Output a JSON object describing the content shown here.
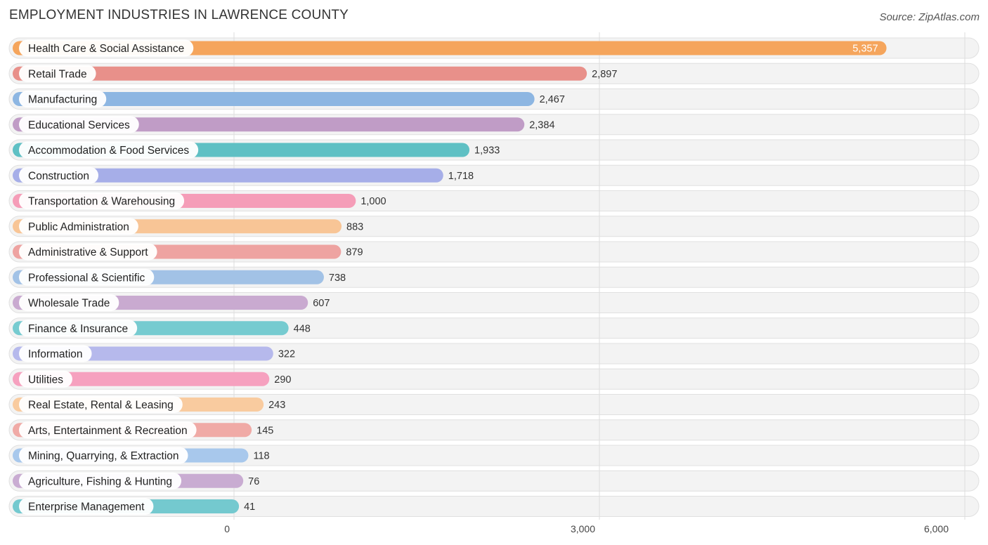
{
  "chart_data": {
    "type": "bar",
    "orientation": "horizontal",
    "title": "EMPLOYMENT INDUSTRIES IN LAWRENCE COUNTY",
    "source": "Source: ZipAtlas.com",
    "categories": [
      "Health Care & Social Assistance",
      "Retail Trade",
      "Manufacturing",
      "Educational Services",
      "Accommodation & Food Services",
      "Construction",
      "Transportation & Warehousing",
      "Public Administration",
      "Administrative & Support",
      "Professional & Scientific",
      "Wholesale Trade",
      "Finance & Insurance",
      "Information",
      "Utilities",
      "Real Estate, Rental & Leasing",
      "Arts, Entertainment & Recreation",
      "Mining, Quarrying, & Extraction",
      "Agriculture, Fishing & Hunting",
      "Enterprise Management"
    ],
    "values": [
      5357,
      2897,
      2467,
      2384,
      1933,
      1718,
      1000,
      883,
      879,
      738,
      607,
      448,
      322,
      290,
      243,
      145,
      118,
      76,
      41
    ],
    "value_labels": [
      "5,357",
      "2,897",
      "2,467",
      "2,384",
      "1,933",
      "1,718",
      "1,000",
      "883",
      "879",
      "738",
      "607",
      "448",
      "322",
      "290",
      "243",
      "145",
      "118",
      "76",
      "41"
    ],
    "colors": [
      "#f5a55c",
      "#e8908a",
      "#8db6e2",
      "#c09cc6",
      "#5fc0c4",
      "#a6aee8",
      "#f59db8",
      "#f8c596",
      "#eea3a1",
      "#a2c2e6",
      "#c9aad0",
      "#76cbd0",
      "#b6b9ec",
      "#f6a1bf",
      "#f9cb9f",
      "#f0aaa6",
      "#a8c8ec",
      "#c9acd2",
      "#74c9cf"
    ],
    "xlim": [
      0,
      6000
    ],
    "xticks": [
      0,
      3000,
      6000
    ],
    "xtick_labels": [
      "0",
      "3,000",
      "6,000"
    ],
    "grid": true
  }
}
